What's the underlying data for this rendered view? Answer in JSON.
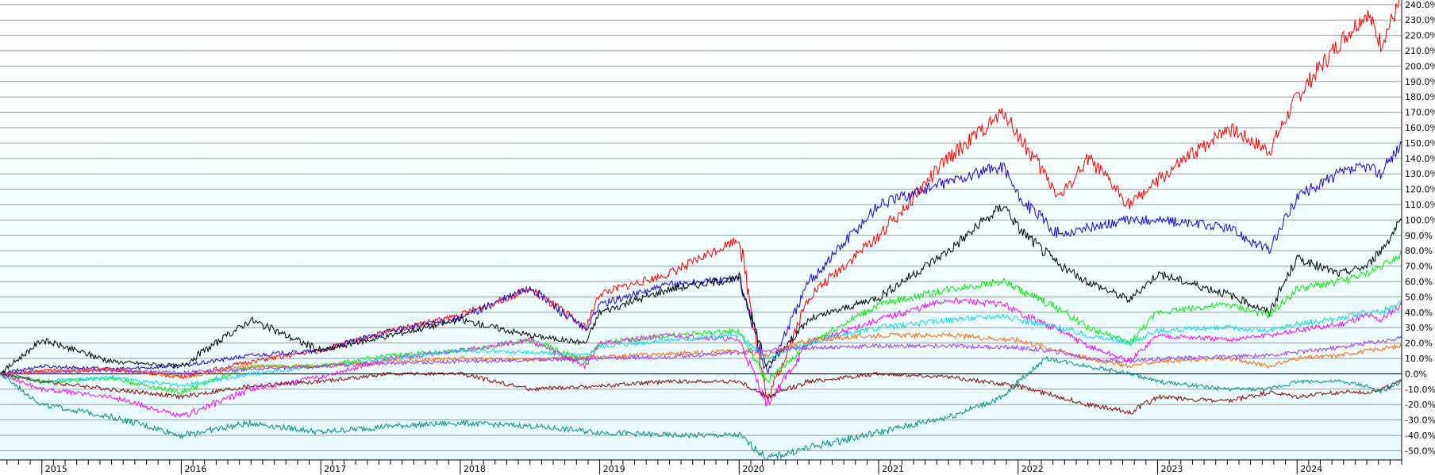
{
  "chart_data": {
    "type": "line",
    "title": "",
    "xlabel": "",
    "ylabel": "",
    "x_tick_labels": [
      "2015",
      "2016",
      "2017",
      "2018",
      "2019",
      "2020",
      "2021",
      "2022",
      "2023",
      "2024"
    ],
    "x_range": [
      2014.7,
      2024.75
    ],
    "ylim": [
      -56,
      243
    ],
    "y_tick_values": [
      -50,
      -40,
      -30,
      -20,
      -10,
      0,
      10,
      20,
      30,
      40,
      50,
      60,
      70,
      80,
      90,
      100,
      110,
      120,
      130,
      140,
      150,
      160,
      170,
      180,
      190,
      200,
      210,
      220,
      230,
      240
    ],
    "y_tick_labels": [
      "-50.0%",
      "-40.0%",
      "-30.0%",
      "-20.0%",
      "-10.0%",
      "0.0%",
      "10.0%",
      "20.0%",
      "30.0%",
      "40.0%",
      "50.0%",
      "60.0%",
      "70.0%",
      "80.0%",
      "90.0%",
      "100.0%",
      "110.0%",
      "120.0%",
      "130.0%",
      "140.0%",
      "150.0%",
      "160.0%",
      "170.0%",
      "180.0%",
      "190.0%",
      "200.0%",
      "210.0%",
      "220.0%",
      "230.0%",
      "240.0%"
    ],
    "grid": true,
    "legend": "none",
    "zero_line": true,
    "background_gradient": [
      "#ffffff",
      "#e6fbfd"
    ],
    "series": [
      {
        "color": "#ff0000",
        "x": [
          2014.7,
          2015.0,
          2015.5,
          2016.0,
          2016.5,
          2017.0,
          2017.5,
          2018.0,
          2018.5,
          2018.9,
          2019.0,
          2019.5,
          2020.0,
          2020.2,
          2020.5,
          2021.0,
          2021.5,
          2021.9,
          2022.0,
          2022.3,
          2022.5,
          2022.8,
          2023.0,
          2023.5,
          2023.8,
          2024.0,
          2024.3,
          2024.5,
          2024.6,
          2024.75
        ],
        "y": [
          0,
          2,
          3,
          -2,
          8,
          15,
          28,
          38,
          55,
          30,
          52,
          65,
          88,
          -18,
          50,
          90,
          140,
          170,
          155,
          115,
          140,
          110,
          125,
          160,
          145,
          180,
          215,
          235,
          215,
          243
        ]
      },
      {
        "color": "#2200cc",
        "x": [
          2014.7,
          2015.0,
          2015.5,
          2016.0,
          2016.5,
          2017.0,
          2017.5,
          2018.0,
          2018.5,
          2018.9,
          2019.0,
          2019.5,
          2020.0,
          2020.2,
          2020.5,
          2021.0,
          2021.5,
          2021.9,
          2022.0,
          2022.3,
          2022.5,
          2022.8,
          2023.0,
          2023.5,
          2023.8,
          2024.0,
          2024.3,
          2024.5,
          2024.6,
          2024.75
        ],
        "y": [
          0,
          5,
          3,
          5,
          12,
          15,
          28,
          36,
          56,
          28,
          45,
          58,
          62,
          0,
          60,
          110,
          125,
          135,
          115,
          90,
          95,
          100,
          100,
          95,
          80,
          115,
          130,
          135,
          130,
          150
        ]
      },
      {
        "color": "#000000",
        "x": [
          2014.7,
          2015.0,
          2015.5,
          2016.0,
          2016.5,
          2017.0,
          2017.5,
          2018.0,
          2018.5,
          2018.9,
          2019.0,
          2019.5,
          2020.0,
          2020.2,
          2020.5,
          2021.0,
          2021.5,
          2021.9,
          2022.0,
          2022.3,
          2022.5,
          2022.8,
          2023.0,
          2023.5,
          2023.8,
          2024.0,
          2024.3,
          2024.5,
          2024.6,
          2024.75
        ],
        "y": [
          0,
          22,
          8,
          5,
          35,
          15,
          25,
          35,
          25,
          20,
          40,
          55,
          62,
          5,
          35,
          50,
          80,
          110,
          95,
          70,
          60,
          48,
          65,
          52,
          40,
          75,
          65,
          70,
          80,
          100
        ]
      },
      {
        "color": "#00ee00",
        "x": [
          2014.7,
          2015.0,
          2015.5,
          2016.0,
          2016.5,
          2017.0,
          2017.5,
          2018.0,
          2018.5,
          2018.9,
          2019.0,
          2019.5,
          2020.0,
          2020.2,
          2020.5,
          2021.0,
          2021.5,
          2021.9,
          2022.0,
          2022.3,
          2022.5,
          2022.8,
          2023.0,
          2023.5,
          2023.8,
          2024.0,
          2024.3,
          2024.5,
          2024.6,
          2024.75
        ],
        "y": [
          0,
          -5,
          -3,
          -12,
          5,
          5,
          12,
          15,
          22,
          8,
          20,
          25,
          28,
          -5,
          20,
          45,
          55,
          60,
          55,
          42,
          30,
          20,
          40,
          45,
          38,
          55,
          60,
          65,
          70,
          78
        ]
      },
      {
        "color": "#ff00ff",
        "x": [
          2014.7,
          2015.0,
          2015.5,
          2016.0,
          2016.5,
          2017.0,
          2017.5,
          2018.0,
          2018.5,
          2018.9,
          2019.0,
          2019.5,
          2020.0,
          2020.2,
          2020.5,
          2021.0,
          2021.5,
          2021.9,
          2022.0,
          2022.3,
          2022.5,
          2022.8,
          2023.0,
          2023.5,
          2023.8,
          2024.0,
          2024.3,
          2024.5,
          2024.6,
          2024.75
        ],
        "y": [
          0,
          -10,
          -15,
          -28,
          -10,
          -2,
          10,
          15,
          22,
          5,
          20,
          25,
          22,
          -20,
          20,
          35,
          48,
          45,
          40,
          28,
          18,
          8,
          25,
          22,
          25,
          28,
          32,
          38,
          35,
          45
        ]
      },
      {
        "color": "#00dddd",
        "x": [
          2014.7,
          2015.0,
          2015.5,
          2016.0,
          2016.5,
          2017.0,
          2017.5,
          2018.0,
          2018.5,
          2018.9,
          2019.0,
          2019.5,
          2020.0,
          2020.2,
          2020.5,
          2021.0,
          2021.5,
          2021.9,
          2022.0,
          2022.3,
          2022.5,
          2022.8,
          2023.0,
          2023.5,
          2023.8,
          2024.0,
          2024.3,
          2024.5,
          2024.6,
          2024.75
        ],
        "y": [
          0,
          -5,
          -2,
          -8,
          0,
          5,
          10,
          15,
          14,
          12,
          18,
          22,
          25,
          10,
          20,
          30,
          35,
          38,
          35,
          30,
          25,
          20,
          28,
          30,
          28,
          32,
          36,
          40,
          40,
          46
        ]
      },
      {
        "color": "#ff6600",
        "x": [
          2014.7,
          2015.5,
          2016.0,
          2016.5,
          2017.0,
          2017.5,
          2018.0,
          2018.5,
          2019.0,
          2019.5,
          2020.0,
          2020.2,
          2020.5,
          2021.0,
          2021.5,
          2022.0,
          2022.3,
          2022.5,
          2022.8,
          2023.0,
          2023.5,
          2023.8,
          2024.0,
          2024.3,
          2024.5,
          2024.75
        ],
        "y": [
          0,
          3,
          -2,
          5,
          5,
          8,
          10,
          9,
          11,
          13,
          15,
          12,
          22,
          25,
          25,
          22,
          15,
          10,
          5,
          8,
          10,
          5,
          10,
          12,
          15,
          18
        ]
      },
      {
        "color": "#9933ff",
        "x": [
          2014.7,
          2015.5,
          2016.0,
          2016.5,
          2017.0,
          2017.5,
          2018.0,
          2018.5,
          2019.0,
          2019.5,
          2020.0,
          2020.2,
          2020.5,
          2021.0,
          2021.5,
          2022.0,
          2022.3,
          2022.5,
          2022.8,
          2023.0,
          2023.5,
          2023.8,
          2024.0,
          2024.3,
          2024.5,
          2024.75
        ],
        "y": [
          0,
          2,
          1,
          3,
          5,
          7,
          8,
          9,
          10,
          11,
          14,
          15,
          17,
          18,
          18,
          17,
          14,
          10,
          8,
          10,
          11,
          12,
          14,
          17,
          20,
          23
        ]
      },
      {
        "color": "#880000",
        "x": [
          2014.7,
          2015.0,
          2015.5,
          2016.0,
          2016.5,
          2017.0,
          2017.5,
          2018.0,
          2018.5,
          2019.0,
          2019.5,
          2020.0,
          2020.2,
          2020.5,
          2021.0,
          2021.5,
          2022.0,
          2022.3,
          2022.5,
          2022.8,
          2023.0,
          2023.5,
          2023.8,
          2024.0,
          2024.3,
          2024.5,
          2024.6,
          2024.75
        ],
        "y": [
          0,
          -5,
          -10,
          -15,
          -8,
          -5,
          0,
          0,
          -10,
          -8,
          -5,
          -5,
          -15,
          -5,
          0,
          -2,
          -8,
          -15,
          -20,
          -25,
          -15,
          -18,
          -12,
          -15,
          -12,
          -12,
          -10,
          -5
        ]
      },
      {
        "color": "#008888",
        "x": [
          2014.7,
          2015.0,
          2015.5,
          2016.0,
          2016.5,
          2017.0,
          2017.5,
          2018.0,
          2018.5,
          2019.0,
          2019.5,
          2020.0,
          2020.2,
          2020.5,
          2021.0,
          2021.5,
          2021.9,
          2022.0,
          2022.2,
          2022.5,
          2022.8,
          2023.0,
          2023.5,
          2023.8,
          2024.0,
          2024.3,
          2024.5,
          2024.6,
          2024.75
        ],
        "y": [
          0,
          -20,
          -28,
          -40,
          -32,
          -38,
          -34,
          -32,
          -34,
          -38,
          -40,
          -40,
          -55,
          -48,
          -38,
          -28,
          -15,
          -5,
          10,
          5,
          0,
          -5,
          -10,
          -10,
          -5,
          -5,
          -8,
          -12,
          -5
        ]
      }
    ]
  }
}
